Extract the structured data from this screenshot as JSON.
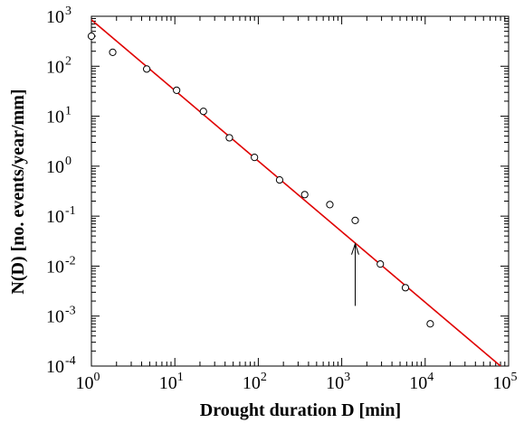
{
  "chart_data": {
    "type": "scatter",
    "title": "",
    "xlabel": "Drought duration D [min]",
    "ylabel": "N(D) [no. events/year/mm]",
    "x_scale": "log",
    "y_scale": "log",
    "xlim": [
      1,
      100000
    ],
    "ylim": [
      0.0001,
      1000
    ],
    "x_ticks": [
      {
        "base": "10",
        "exp": "0",
        "value": 1
      },
      {
        "base": "10",
        "exp": "1",
        "value": 10
      },
      {
        "base": "10",
        "exp": "2",
        "value": 100
      },
      {
        "base": "10",
        "exp": "3",
        "value": 1000
      },
      {
        "base": "10",
        "exp": "4",
        "value": 10000
      },
      {
        "base": "10",
        "exp": "5",
        "value": 100000
      }
    ],
    "y_ticks": [
      {
        "base": "10",
        "exp": "3",
        "value": 1000
      },
      {
        "base": "10",
        "exp": "2",
        "value": 100
      },
      {
        "base": "10",
        "exp": "1",
        "value": 10
      },
      {
        "base": "10",
        "exp": "0",
        "value": 1
      },
      {
        "base": "10",
        "exp": "-1",
        "value": 0.1
      },
      {
        "base": "10",
        "exp": "-2",
        "value": 0.01
      },
      {
        "base": "10",
        "exp": "-3",
        "value": 0.001
      },
      {
        "base": "10",
        "exp": "-4",
        "value": 0.0001
      }
    ],
    "grid": false,
    "legend": "none",
    "series": [
      {
        "kind": "markers",
        "marker": "open-circle",
        "color": "#000000",
        "x": [
          1.0,
          1.8,
          4.6,
          10.5,
          22,
          45,
          90,
          180,
          360,
          720,
          1450,
          2900,
          5800,
          11500
        ],
        "y": [
          400,
          190,
          88,
          33,
          12.5,
          3.7,
          1.5,
          0.53,
          0.27,
          0.17,
          0.082,
          0.011,
          0.0037,
          0.0007
        ]
      },
      {
        "kind": "line",
        "color": "#e00000",
        "x": [
          1,
          80000
        ],
        "y": [
          850,
          0.0001
        ]
      }
    ],
    "annotations": [
      {
        "type": "arrow",
        "x": 1450,
        "y_from": 0.0016,
        "y_to": 0.028,
        "color": "#000000"
      }
    ]
  }
}
